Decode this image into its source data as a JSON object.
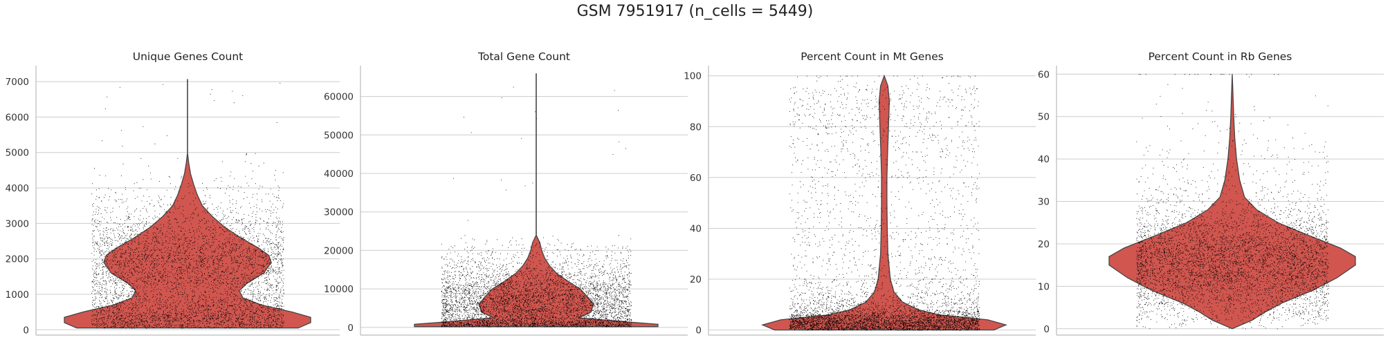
{
  "figure": {
    "title": "GSM 7951917 (n_cells = 5449)"
  },
  "colors": {
    "violin_fill": "#d0564f",
    "violin_edge": "#444444",
    "point": "#000000",
    "grid": "#cccccc",
    "axis": "#bbbbbb"
  },
  "chart_data": [
    {
      "type": "violin",
      "title": "Unique Genes Count",
      "xlabel": "",
      "ylabel": "",
      "ylim": [
        -150,
        7450
      ],
      "yticks": [
        0,
        1000,
        2000,
        3000,
        4000,
        5000,
        6000,
        7000
      ],
      "grid": true,
      "n_points": 5449,
      "data_range": [
        50,
        7070
      ],
      "density_profile": [
        [
          50,
          0.9
        ],
        [
          200,
          1.0
        ],
        [
          350,
          1.0
        ],
        [
          500,
          0.85
        ],
        [
          700,
          0.6
        ],
        [
          900,
          0.45
        ],
        [
          1100,
          0.42
        ],
        [
          1300,
          0.48
        ],
        [
          1600,
          0.62
        ],
        [
          1900,
          0.68
        ],
        [
          2100,
          0.66
        ],
        [
          2300,
          0.58
        ],
        [
          2600,
          0.43
        ],
        [
          2900,
          0.3
        ],
        [
          3200,
          0.2
        ],
        [
          3500,
          0.12
        ],
        [
          3800,
          0.08
        ],
        [
          4100,
          0.05
        ],
        [
          4400,
          0.025
        ],
        [
          4700,
          0.01
        ],
        [
          5000,
          0.0
        ]
      ]
    },
    {
      "type": "violin",
      "title": "Total Gene Count",
      "xlabel": "",
      "ylabel": "",
      "ylim": [
        -2000,
        68000
      ],
      "yticks": [
        0,
        10000,
        20000,
        30000,
        40000,
        50000,
        60000
      ],
      "grid": true,
      "n_points": 5449,
      "data_range": [
        200,
        66000
      ],
      "density_profile": [
        [
          200,
          1.0
        ],
        [
          800,
          1.0
        ],
        [
          1500,
          0.72
        ],
        [
          2500,
          0.35
        ],
        [
          4000,
          0.45
        ],
        [
          6000,
          0.47
        ],
        [
          8000,
          0.42
        ],
        [
          10000,
          0.36
        ],
        [
          12000,
          0.26
        ],
        [
          14000,
          0.17
        ],
        [
          16000,
          0.11
        ],
        [
          18000,
          0.07
        ],
        [
          20000,
          0.045
        ],
        [
          22000,
          0.03
        ],
        [
          24000,
          0.0
        ]
      ]
    },
    {
      "type": "violin",
      "title": "Percent Count in Mt Genes",
      "xlabel": "",
      "ylabel": "",
      "ylim": [
        -2,
        104
      ],
      "yticks": [
        0,
        20,
        40,
        60,
        80,
        100
      ],
      "grid": true,
      "n_points": 5449,
      "data_range": [
        0,
        100
      ],
      "density_profile": [
        [
          0,
          0.9
        ],
        [
          2,
          1.0
        ],
        [
          4,
          0.85
        ],
        [
          6,
          0.45
        ],
        [
          8,
          0.28
        ],
        [
          11,
          0.15
        ],
        [
          15,
          0.08
        ],
        [
          20,
          0.05
        ],
        [
          30,
          0.03
        ],
        [
          40,
          0.025
        ],
        [
          50,
          0.022
        ],
        [
          60,
          0.022
        ],
        [
          70,
          0.028
        ],
        [
          80,
          0.035
        ],
        [
          90,
          0.042
        ],
        [
          96,
          0.03
        ],
        [
          100,
          0.0
        ]
      ]
    },
    {
      "type": "violin",
      "title": "Percent Count in Rb Genes",
      "xlabel": "",
      "ylabel": "",
      "ylim": [
        -1.5,
        62
      ],
      "yticks": [
        0,
        10,
        20,
        30,
        40,
        50,
        60
      ],
      "grid": true,
      "n_points": 5449,
      "data_range": [
        0,
        60
      ],
      "density_profile": [
        [
          0,
          0.0
        ],
        [
          2,
          0.16
        ],
        [
          4,
          0.27
        ],
        [
          6,
          0.4
        ],
        [
          9,
          0.65
        ],
        [
          12,
          0.85
        ],
        [
          15,
          1.0
        ],
        [
          17,
          1.0
        ],
        [
          19,
          0.88
        ],
        [
          22,
          0.62
        ],
        [
          25,
          0.37
        ],
        [
          28,
          0.2
        ],
        [
          31,
          0.1
        ],
        [
          35,
          0.06
        ],
        [
          40,
          0.035
        ],
        [
          45,
          0.02
        ],
        [
          50,
          0.012
        ],
        [
          55,
          0.006
        ],
        [
          60,
          0.0
        ]
      ]
    }
  ]
}
